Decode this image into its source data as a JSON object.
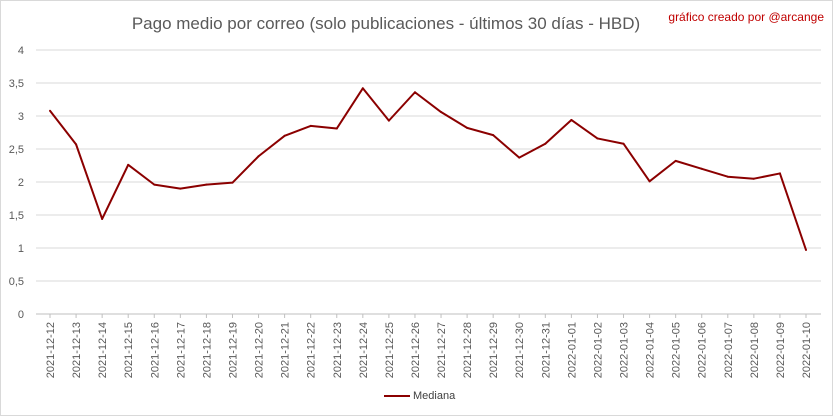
{
  "chart_data": {
    "type": "line",
    "title": "Pago medio por correo (solo publicaciones - últimos 30 días - HBD)",
    "annotation": "gráfico creado por @arcange",
    "categories": [
      "2021-12-12",
      "2021-12-13",
      "2021-12-14",
      "2021-12-15",
      "2021-12-16",
      "2021-12-17",
      "2021-12-18",
      "2021-12-19",
      "2021-12-20",
      "2021-12-21",
      "2021-12-22",
      "2021-12-23",
      "2021-12-24",
      "2021-12-25",
      "2021-12-26",
      "2021-12-27",
      "2021-12-28",
      "2021-12-29",
      "2021-12-30",
      "2021-12-31",
      "2022-01-01",
      "2022-01-02",
      "2022-01-03",
      "2022-01-04",
      "2022-01-05",
      "2022-01-06",
      "2022-01-07",
      "2022-01-08",
      "2022-01-09",
      "2022-01-10"
    ],
    "series": [
      {
        "name": "Mediana",
        "color": "#8b0000",
        "values": [
          3.08,
          2.57,
          1.44,
          2.26,
          1.96,
          1.9,
          1.96,
          1.99,
          2.39,
          2.7,
          2.85,
          2.81,
          3.42,
          2.93,
          3.36,
          3.06,
          2.82,
          2.71,
          2.37,
          2.58,
          2.94,
          2.66,
          2.58,
          2.01,
          2.32,
          2.2,
          2.08,
          2.05,
          2.13,
          0.97
        ]
      }
    ],
    "y_ticks": [
      "0",
      "0,5",
      "1",
      "1,5",
      "2",
      "2,5",
      "3",
      "3,5",
      "4"
    ],
    "ylim": [
      0,
      4
    ],
    "grid": true,
    "legend_position": "bottom"
  }
}
